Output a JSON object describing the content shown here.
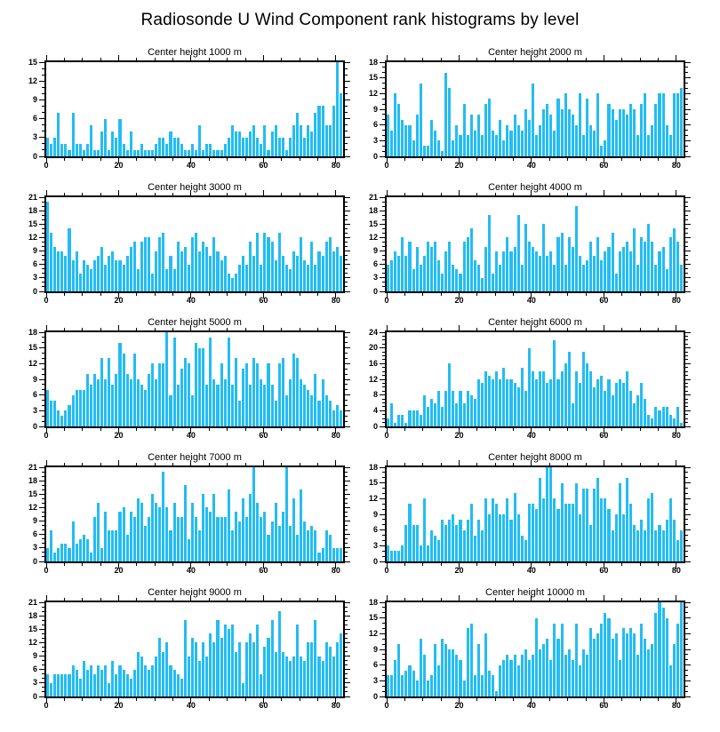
{
  "title": "Radiosonde U Wind Component rank histograms by level",
  "bar_color": "#24BCF2",
  "axis_color": "#000000",
  "chart_data": {
    "type": "bar",
    "layout": "5 rows x 2 columns of rank histograms",
    "xlim": [
      0,
      82
    ],
    "n_bins": 82,
    "x_ticks": [
      0,
      20,
      40,
      60,
      80
    ],
    "x_minor_step": 5,
    "y_minor_step": 1,
    "grid": false,
    "legend": "none",
    "subplots": [
      {
        "title": "Center height 1000 m",
        "ylim": [
          0,
          15
        ],
        "ytick_step": 3,
        "values": [
          3,
          2,
          3,
          7,
          2,
          2,
          1,
          7,
          2,
          2,
          1,
          2,
          5,
          1,
          1,
          4,
          6,
          1,
          4,
          3,
          6,
          2,
          1,
          4,
          1,
          1,
          2,
          1,
          1,
          1,
          2,
          3,
          3,
          2,
          4,
          3,
          3,
          2,
          1,
          1,
          2,
          1,
          5,
          1,
          2,
          2,
          1,
          1,
          1,
          2,
          3,
          5,
          4,
          4,
          3,
          3,
          4,
          5,
          3,
          2,
          5,
          1,
          4,
          5,
          3,
          3,
          1,
          3,
          5,
          7,
          5,
          3,
          5,
          4,
          7,
          8,
          8,
          5,
          5,
          8,
          15,
          10
        ]
      },
      {
        "title": "Center height 2000 m",
        "ylim": [
          0,
          18
        ],
        "ytick_step": 3,
        "values": [
          8,
          5,
          12,
          10,
          7,
          6,
          6,
          3,
          8,
          14,
          2,
          2,
          7,
          5,
          3,
          1,
          16,
          13,
          3,
          6,
          4,
          10,
          4,
          8,
          5,
          8,
          4,
          10,
          11,
          5,
          4,
          7,
          3,
          6,
          5,
          8,
          6,
          5,
          9,
          7,
          14,
          4,
          6,
          9,
          10,
          8,
          5,
          11,
          9,
          12,
          9,
          8,
          6,
          12,
          4,
          11,
          6,
          5,
          12,
          2,
          3,
          10,
          9,
          7,
          9,
          9,
          8,
          10,
          9,
          4,
          10,
          12,
          4,
          6,
          10,
          12,
          12,
          6,
          4,
          12,
          12,
          13
        ]
      },
      {
        "title": "Center height 3000 m",
        "ylim": [
          0,
          21
        ],
        "ytick_step": 3,
        "values": [
          20,
          13,
          10,
          9,
          9,
          8,
          14,
          7,
          9,
          4,
          7,
          6,
          5,
          7,
          8,
          10,
          6,
          8,
          9,
          7,
          7,
          6,
          8,
          10,
          11,
          5,
          11,
          12,
          12,
          4,
          9,
          12,
          13,
          5,
          8,
          5,
          11,
          9,
          10,
          6,
          12,
          13,
          9,
          11,
          10,
          8,
          12,
          9,
          7,
          8,
          4,
          3,
          4,
          6,
          8,
          6,
          11,
          8,
          13,
          6,
          13,
          12,
          11,
          7,
          13,
          8,
          6,
          5,
          9,
          8,
          12,
          7,
          6,
          11,
          6,
          9,
          8,
          11,
          12,
          9,
          10,
          8
        ]
      },
      {
        "title": "Center height 4000 m",
        "ylim": [
          0,
          21
        ],
        "ytick_step": 3,
        "values": [
          6,
          7,
          9,
          8,
          12,
          8,
          11,
          5,
          10,
          6,
          8,
          11,
          10,
          11,
          7,
          4,
          9,
          11,
          6,
          5,
          4,
          11,
          12,
          14,
          7,
          6,
          3,
          10,
          17,
          4,
          9,
          6,
          9,
          12,
          9,
          10,
          17,
          6,
          15,
          11,
          10,
          9,
          8,
          15,
          8,
          9,
          6,
          12,
          13,
          6,
          12,
          10,
          19,
          8,
          6,
          7,
          11,
          8,
          12,
          7,
          9,
          10,
          13,
          4,
          9,
          10,
          11,
          9,
          14,
          6,
          12,
          11,
          15,
          11,
          6,
          9,
          10,
          5,
          12,
          14,
          11,
          6
        ]
      },
      {
        "title": "Center height 5000 m",
        "ylim": [
          0,
          18
        ],
        "ytick_step": 3,
        "values": [
          7,
          5,
          5,
          3,
          2,
          3,
          4,
          6,
          7,
          7,
          7,
          10,
          8,
          10,
          9,
          13,
          9,
          13,
          8,
          10,
          16,
          14,
          10,
          9,
          14,
          9,
          8,
          7,
          10,
          12,
          9,
          12,
          12,
          18,
          6,
          17,
          8,
          11,
          13,
          12,
          6,
          16,
          15,
          15,
          8,
          17,
          9,
          8,
          12,
          9,
          17,
          8,
          13,
          5,
          11,
          12,
          8,
          13,
          12,
          9,
          8,
          12,
          8,
          5,
          12,
          13,
          6,
          9,
          14,
          13,
          9,
          8,
          7,
          6,
          10,
          5,
          9,
          6,
          5,
          3,
          4,
          3
        ]
      },
      {
        "title": "Center height 6000 m",
        "ylim": [
          0,
          24
        ],
        "ytick_step": 4,
        "values": [
          2,
          6,
          1,
          3,
          3,
          1,
          4,
          4,
          4,
          3,
          8,
          5,
          7,
          6,
          9,
          5,
          9,
          16,
          9,
          6,
          9,
          6,
          9,
          8,
          7,
          12,
          11,
          14,
          13,
          12,
          14,
          12,
          15,
          12,
          12,
          11,
          10,
          15,
          9,
          20,
          14,
          12,
          14,
          14,
          11,
          12,
          22,
          12,
          14,
          16,
          19,
          6,
          14,
          11,
          19,
          16,
          14,
          10,
          12,
          13,
          9,
          12,
          8,
          11,
          12,
          11,
          14,
          9,
          6,
          8,
          11,
          7,
          3,
          2,
          5,
          4,
          5,
          5,
          3,
          2,
          5,
          1
        ]
      },
      {
        "title": "Center height 7000 m",
        "ylim": [
          0,
          21
        ],
        "ytick_step": 3,
        "values": [
          3,
          7,
          2,
          3,
          4,
          4,
          3,
          9,
          4,
          5,
          6,
          5,
          2,
          10,
          13,
          3,
          11,
          7,
          7,
          7,
          11,
          12,
          6,
          11,
          10,
          14,
          13,
          8,
          10,
          15,
          13,
          12,
          20,
          12,
          7,
          13,
          10,
          10,
          17,
          5,
          13,
          10,
          7,
          15,
          12,
          11,
          15,
          10,
          10,
          10,
          16,
          7,
          11,
          9,
          14,
          10,
          15,
          21,
          13,
          10,
          11,
          6,
          9,
          13,
          8,
          11,
          21,
          8,
          14,
          6,
          16,
          9,
          7,
          8,
          7,
          2,
          3,
          7,
          6,
          3,
          3,
          3
        ]
      },
      {
        "title": "Center height 8000 m",
        "ylim": [
          0,
          18
        ],
        "ytick_step": 3,
        "values": [
          3,
          2,
          2,
          2,
          3,
          7,
          11,
          7,
          7,
          3,
          12,
          3,
          6,
          5,
          4,
          8,
          7,
          8,
          9,
          7,
          8,
          6,
          8,
          11,
          5,
          8,
          6,
          12,
          9,
          12,
          11,
          9,
          9,
          12,
          8,
          13,
          9,
          5,
          4,
          11,
          11,
          10,
          16,
          12,
          18,
          18,
          12,
          10,
          15,
          11,
          11,
          11,
          15,
          9,
          14,
          14,
          7,
          14,
          16,
          12,
          12,
          10,
          6,
          9,
          15,
          9,
          16,
          11,
          7,
          6,
          8,
          6,
          12,
          13,
          6,
          7,
          6,
          8,
          12,
          8,
          4,
          6
        ]
      },
      {
        "title": "Center height 9000 m",
        "ylim": [
          0,
          21
        ],
        "ytick_step": 3,
        "values": [
          5,
          3,
          5,
          5,
          5,
          5,
          5,
          7,
          6,
          4,
          8,
          6,
          7,
          5,
          7,
          6,
          7,
          3,
          8,
          5,
          7,
          6,
          5,
          4,
          6,
          10,
          9,
          7,
          6,
          7,
          9,
          13,
          10,
          12,
          7,
          6,
          5,
          4,
          17,
          9,
          13,
          12,
          8,
          12,
          9,
          14,
          12,
          17,
          13,
          16,
          15,
          16,
          10,
          12,
          3,
          12,
          14,
          12,
          16,
          5,
          11,
          13,
          17,
          10,
          19,
          10,
          9,
          8,
          9,
          16,
          9,
          8,
          12,
          12,
          17,
          9,
          8,
          12,
          11,
          9,
          12,
          14
        ]
      },
      {
        "title": "Center height 10000 m",
        "ylim": [
          0,
          18
        ],
        "ytick_step": 3,
        "values": [
          4,
          4,
          7,
          10,
          4,
          5,
          6,
          5,
          3,
          11,
          8,
          3,
          4,
          10,
          6,
          11,
          10,
          9,
          9,
          8,
          7,
          3,
          13,
          14,
          4,
          10,
          4,
          12,
          5,
          4,
          1,
          6,
          7,
          8,
          7,
          8,
          6,
          8,
          9,
          7,
          8,
          15,
          9,
          10,
          11,
          7,
          14,
          11,
          14,
          8,
          9,
          7,
          14,
          6,
          9,
          8,
          13,
          11,
          12,
          14,
          16,
          15,
          11,
          12,
          7,
          13,
          12,
          13,
          12,
          8,
          14,
          11,
          9,
          10,
          16,
          18,
          17,
          15,
          6,
          10,
          14,
          18
        ]
      }
    ]
  }
}
